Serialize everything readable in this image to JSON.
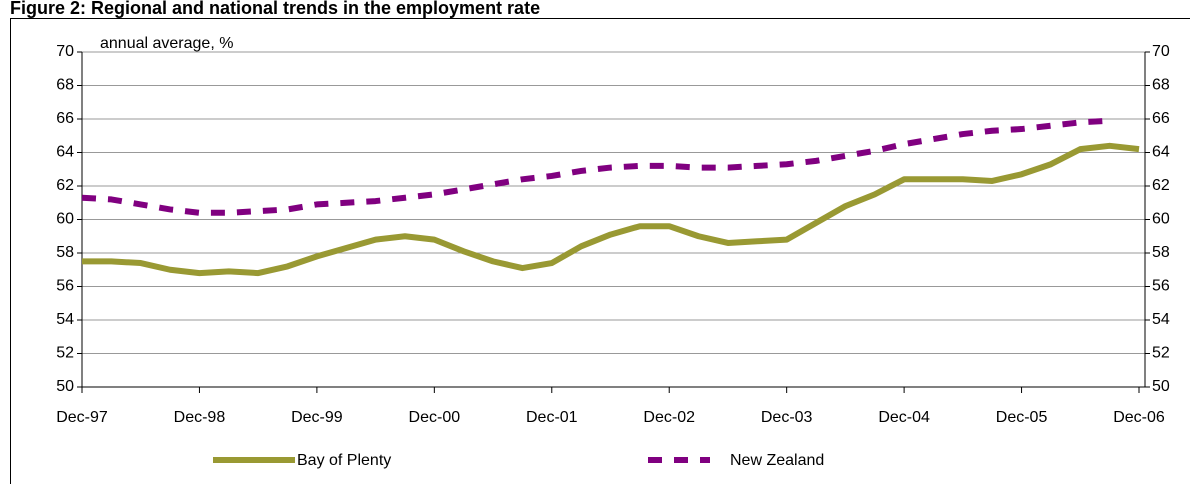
{
  "chart_data": {
    "type": "line",
    "title": "Figure 2: Regional and national trends in the employment rate",
    "y_label": "annual average, %",
    "categories": [
      "Dec-97",
      null,
      null,
      null,
      "Dec-98",
      null,
      null,
      null,
      "Dec-99",
      null,
      null,
      null,
      "Dec-00",
      null,
      null,
      null,
      "Dec-01",
      null,
      null,
      null,
      "Dec-02",
      null,
      null,
      null,
      "Dec-03",
      null,
      null,
      null,
      "Dec-04",
      null,
      null,
      null,
      "Dec-05",
      null,
      null,
      null,
      "Dec-06"
    ],
    "series": [
      {
        "name": "Bay of Plenty",
        "color": "#999933",
        "dash": false,
        "values": [
          57.5,
          57.5,
          57.4,
          57.0,
          56.8,
          56.9,
          56.8,
          57.2,
          57.8,
          58.3,
          58.8,
          59.0,
          58.8,
          58.1,
          57.5,
          57.1,
          57.4,
          58.4,
          59.1,
          59.6,
          59.6,
          59.0,
          58.6,
          58.7,
          58.8,
          59.8,
          60.8,
          61.5,
          62.4,
          62.4,
          62.4,
          62.3,
          62.7,
          63.3,
          64.2,
          64.4,
          64.2
        ]
      },
      {
        "name": "New Zealand",
        "color": "#800080",
        "dash": true,
        "values": [
          61.3,
          61.2,
          60.9,
          60.6,
          60.4,
          60.4,
          60.5,
          60.6,
          60.9,
          61.0,
          61.1,
          61.3,
          61.5,
          61.8,
          62.1,
          62.4,
          62.6,
          62.9,
          63.1,
          63.2,
          63.2,
          63.1,
          63.1,
          63.2,
          63.3,
          63.5,
          63.8,
          64.1,
          64.5,
          64.8,
          65.1,
          65.3,
          65.4,
          65.6,
          65.8,
          65.9,
          null
        ]
      }
    ],
    "ylim": [
      50,
      70
    ],
    "yticks": [
      50,
      52,
      54,
      56,
      58,
      60,
      62,
      64,
      66,
      68,
      70
    ],
    "y2lim": [
      50,
      70
    ],
    "y2ticks": [
      50,
      52,
      54,
      56,
      58,
      60,
      62,
      64,
      66,
      68,
      70
    ],
    "grid": true,
    "legend": "bottom"
  }
}
